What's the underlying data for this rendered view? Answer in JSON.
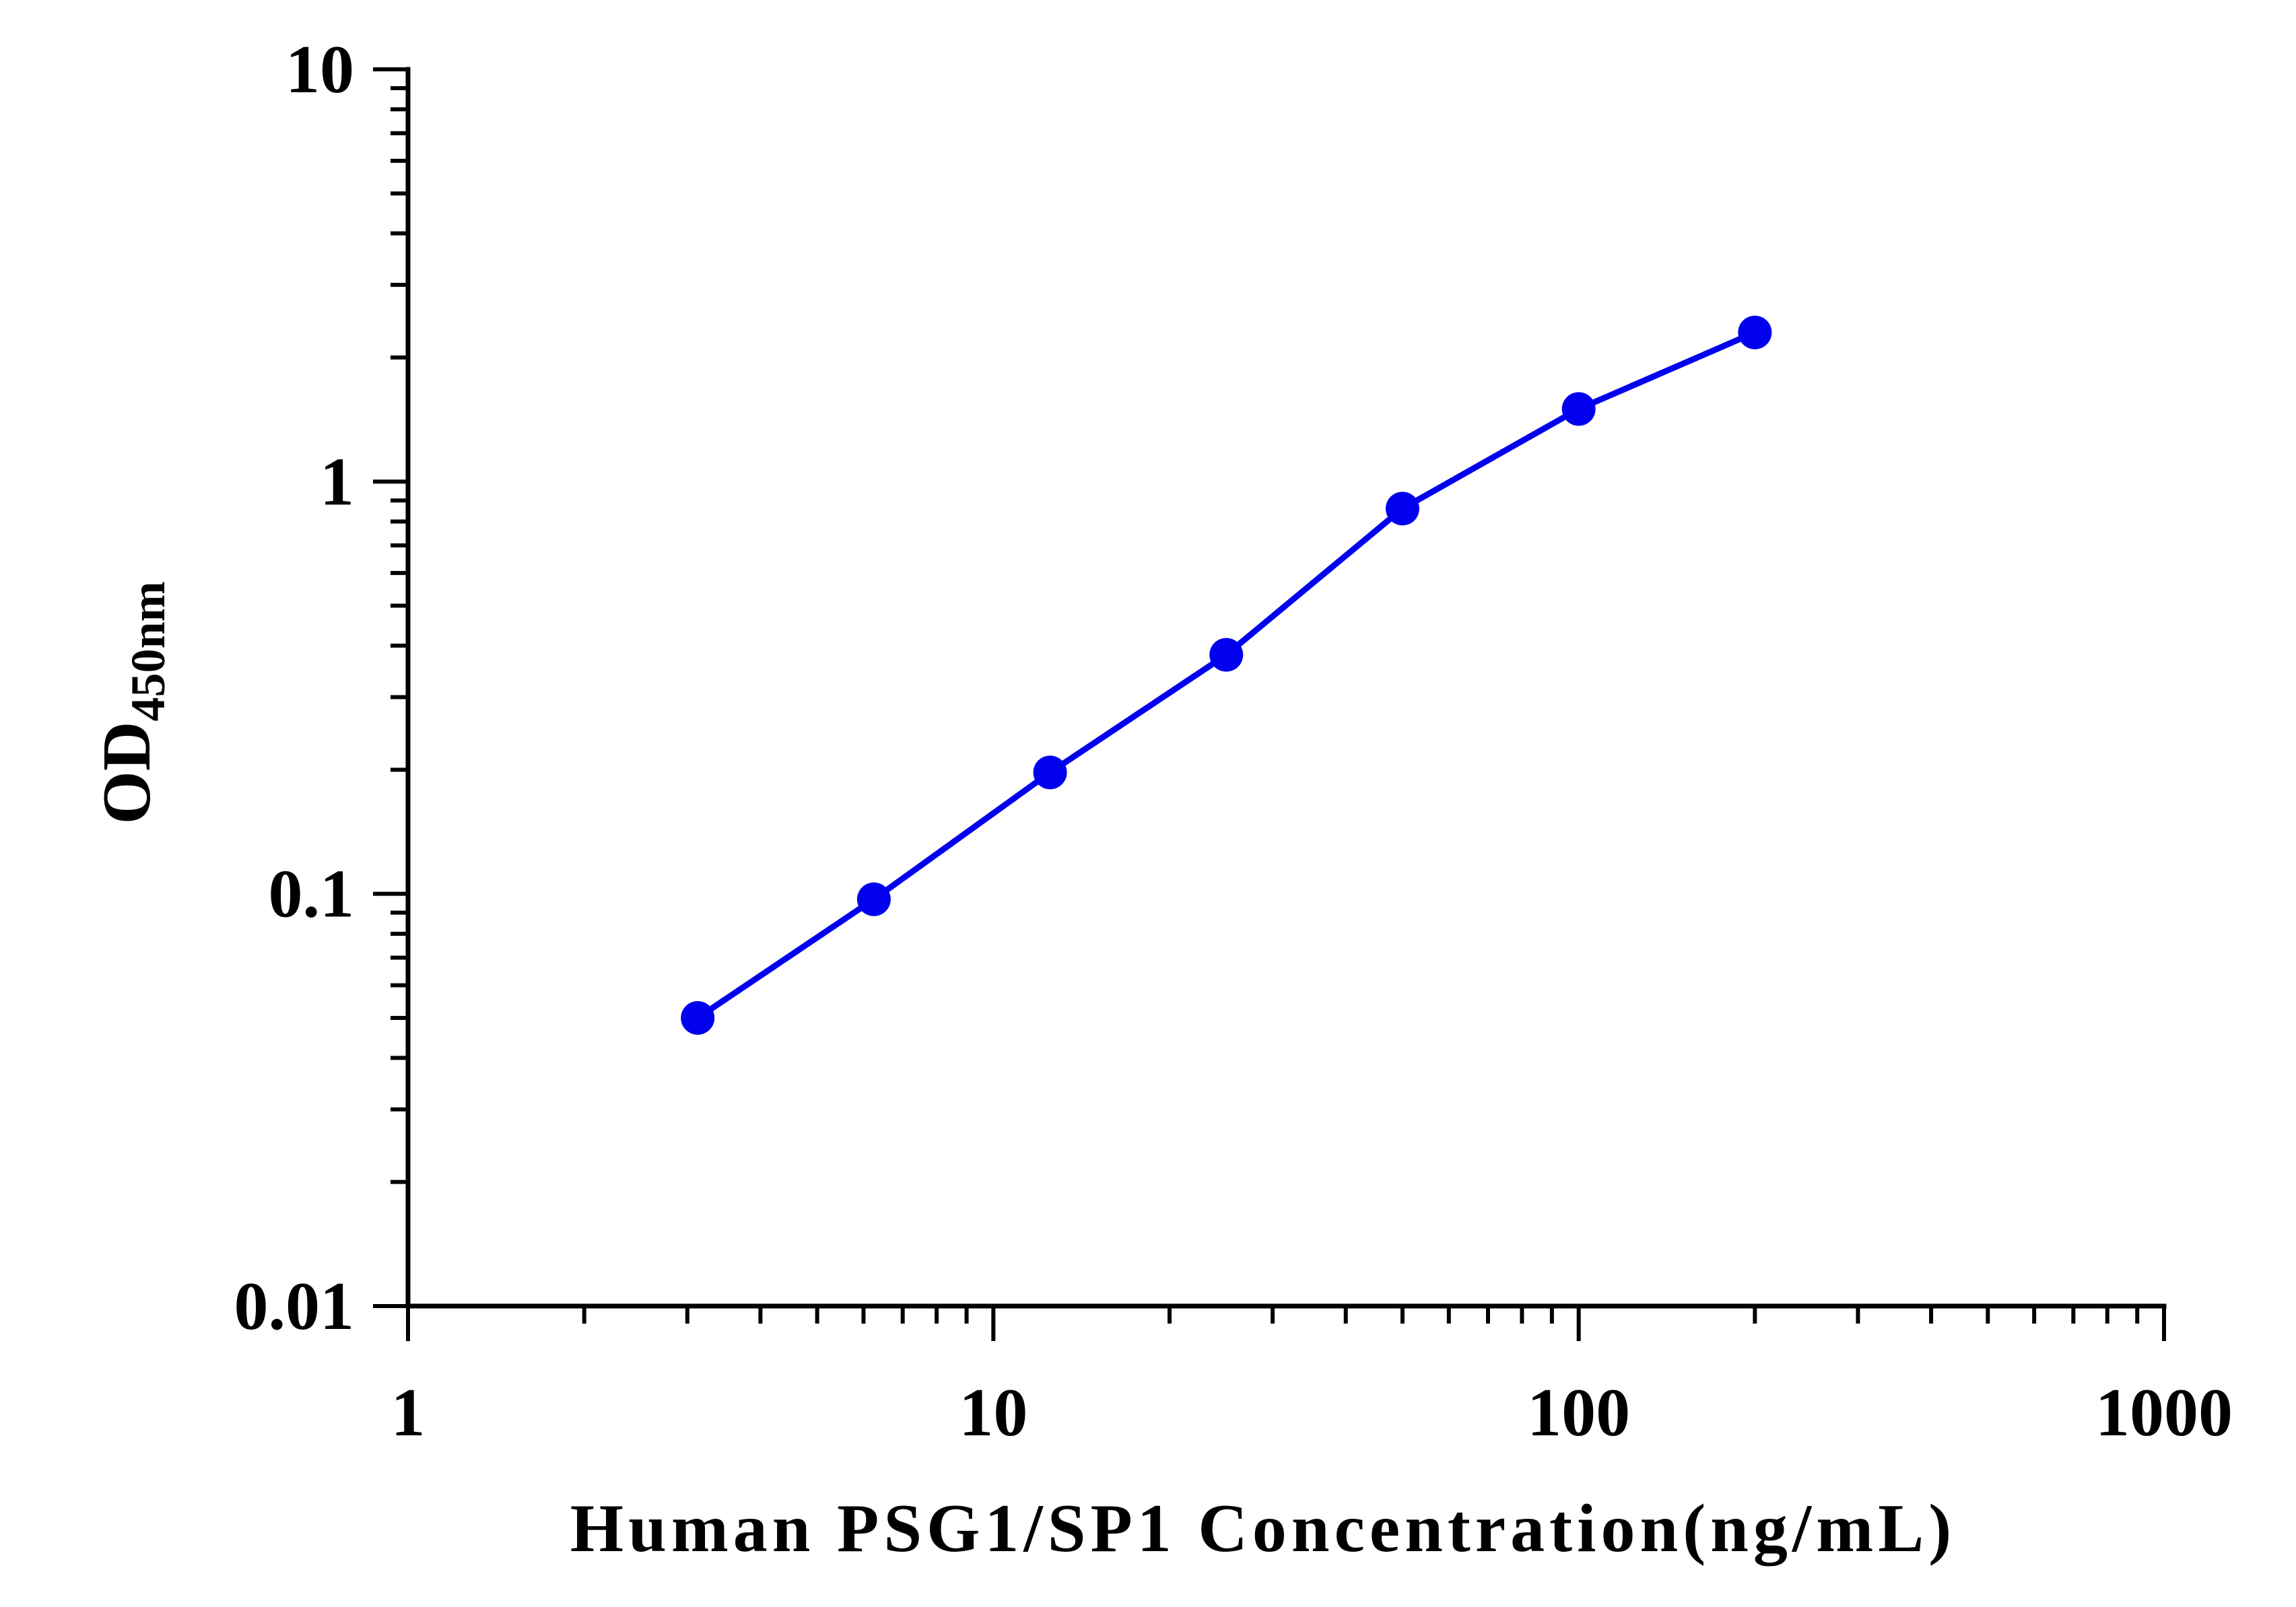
{
  "chart_data": {
    "type": "line",
    "title": "",
    "xlabel": "Human PSG1/SP1 Concentration(ng/mL)",
    "ylabel_main": "OD",
    "ylabel_sub": "450nm",
    "x_scale": "log",
    "y_scale": "log",
    "xlim": [
      1,
      1000
    ],
    "ylim": [
      0.01,
      10
    ],
    "x_ticks": [
      "1",
      "10",
      "100",
      "1000"
    ],
    "y_ticks": [
      "0.01",
      "0.1",
      "1",
      "10"
    ],
    "grid": false,
    "legend": "none",
    "series": [
      {
        "color": "#0000ee",
        "x": [
          3.125,
          6.25,
          12.5,
          25,
          50,
          100,
          200
        ],
        "y": [
          0.05,
          0.097,
          0.197,
          0.38,
          0.86,
          1.5,
          2.3
        ]
      }
    ]
  }
}
